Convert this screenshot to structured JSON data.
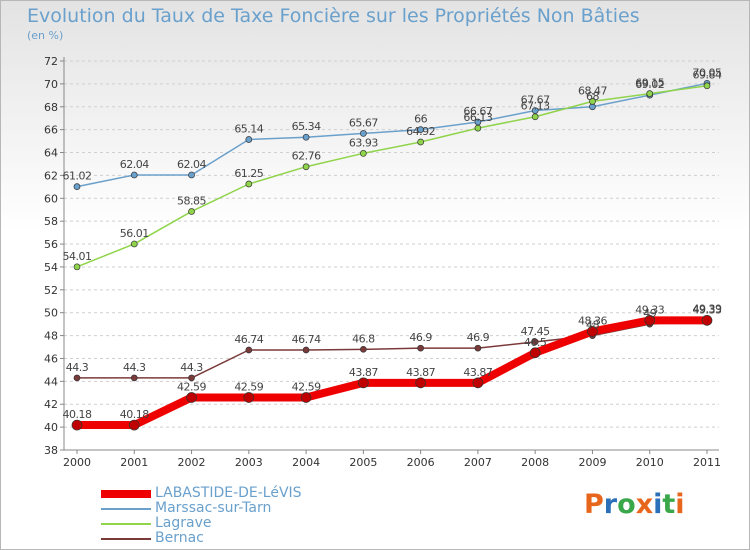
{
  "header": {
    "title": "Evolution du Taux de Taxe Foncière sur les Propriétés Non Bâties",
    "unit": "(en %)"
  },
  "logo": {
    "text": "Proxiti",
    "colors": [
      "#e8661c",
      "#2a6fb8",
      "#3aa84a",
      "#e8661c",
      "#2a6fb8",
      "#3aa84a",
      "#e8661c"
    ]
  },
  "chart_data": {
    "type": "line",
    "x": [
      "2000",
      "2001",
      "2002",
      "2003",
      "2004",
      "2005",
      "2006",
      "2007",
      "2008",
      "2009",
      "2010",
      "2011"
    ],
    "ylim": [
      38,
      72
    ],
    "yticks": [
      "38",
      "40",
      "42",
      "44",
      "46",
      "48",
      "50",
      "52",
      "54",
      "56",
      "58",
      "60",
      "62",
      "64",
      "66",
      "68",
      "70",
      "72"
    ],
    "grid": "horizontal dashed",
    "legend_position": "bottom-left",
    "series": [
      {
        "name": "LABASTIDE-DE-LéVIS",
        "color": "#ee0000",
        "width": 8,
        "values": [
          40.18,
          40.18,
          42.59,
          42.59,
          42.59,
          43.87,
          43.87,
          43.87,
          46.5,
          48.36,
          49.33,
          49.33
        ],
        "labels": [
          "40.18",
          "40.18",
          "42.59",
          "42.59",
          "42.59",
          "43.87",
          "43.87",
          "43.87",
          "46.5",
          "48.36",
          "49.33",
          "49.33"
        ]
      },
      {
        "name": "Marssac-sur-Tarn",
        "color": "#6aa0cc",
        "width": 1.5,
        "values": [
          61.02,
          62.04,
          62.04,
          65.14,
          65.34,
          65.67,
          66,
          66.67,
          67.67,
          68.0,
          69.02,
          70.05
        ],
        "labels": [
          "61.02",
          "62.04",
          "62.04",
          "65.14",
          "65.34",
          "65.67",
          "66",
          "66.67",
          "67.67",
          "68",
          "69.02",
          "70.05"
        ]
      },
      {
        "name": "Lagrave",
        "color": "#8fd44a",
        "width": 1.5,
        "values": [
          54.01,
          56.01,
          58.85,
          61.25,
          62.76,
          63.93,
          64.92,
          66.13,
          67.13,
          68.47,
          69.15,
          69.84
        ],
        "labels": [
          "54.01",
          "56.01",
          "58.85",
          "61.25",
          "62.76",
          "63.93",
          "64.92",
          "66.13",
          "67.13",
          "68.47",
          "69.15",
          "69.84"
        ]
      },
      {
        "name": "Bernac",
        "color": "#7a3a3a",
        "width": 1.5,
        "values": [
          44.3,
          44.3,
          44.3,
          46.74,
          46.74,
          46.8,
          46.9,
          46.9,
          47.45,
          48.0,
          49.0,
          49.39
        ],
        "labels": [
          "44.3",
          "44.3",
          "44.3",
          "46.74",
          "46.74",
          "46.8",
          "46.9",
          "46.9",
          "47.45",
          "48",
          "49",
          "49.39"
        ]
      }
    ]
  }
}
